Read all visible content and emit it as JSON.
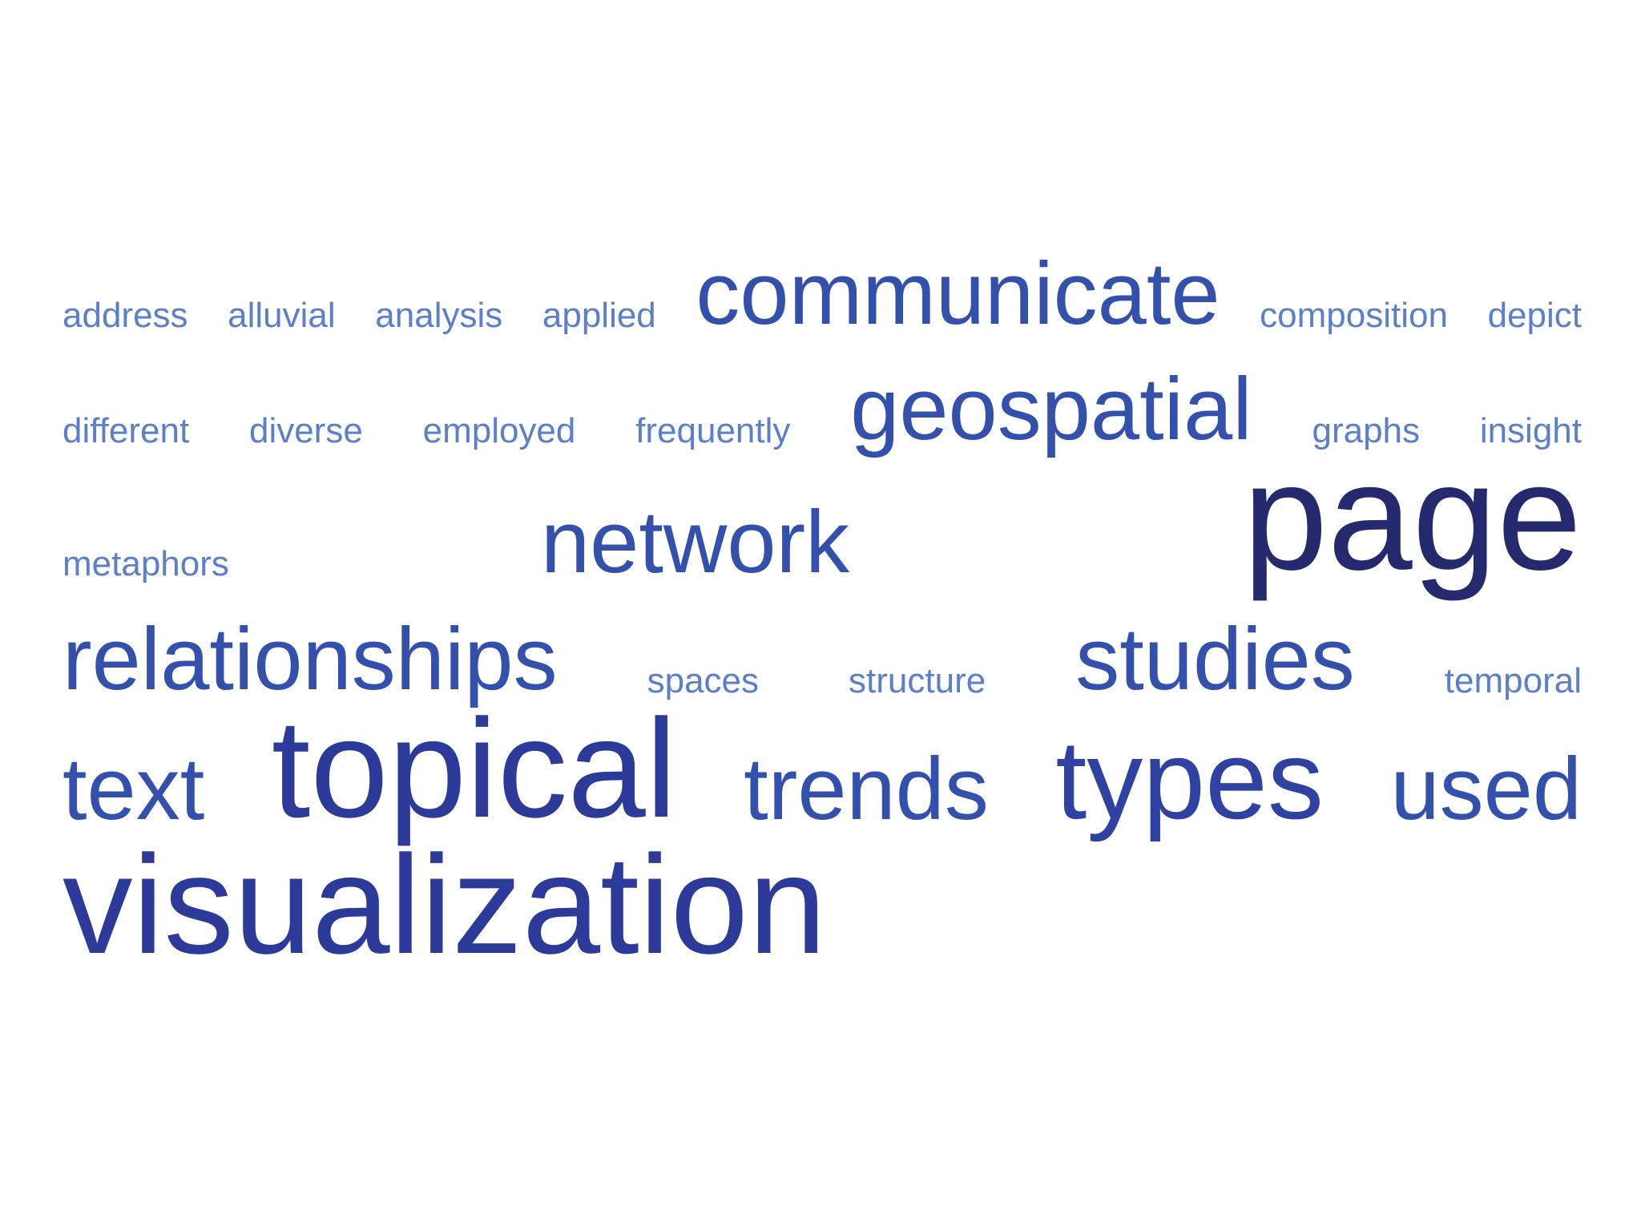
{
  "chart_data": {
    "type": "wordcloud",
    "rows": [
      {
        "words": [
          {
            "text": "address",
            "weight": 1,
            "color": "#5b7fcb"
          },
          {
            "text": "alluvial",
            "weight": 1,
            "color": "#5b7fcb"
          },
          {
            "text": "analysis",
            "weight": 1,
            "color": "#5b7fcb"
          },
          {
            "text": "applied",
            "weight": 1,
            "color": "#5b7fcb"
          },
          {
            "text": "communicate",
            "weight": 3,
            "color": "#3350ad"
          },
          {
            "text": "composition",
            "weight": 1,
            "color": "#5b7fcb"
          },
          {
            "text": "depict",
            "weight": 1,
            "color": "#5b7fcb"
          }
        ]
      },
      {
        "words": [
          {
            "text": "different",
            "weight": 1,
            "color": "#5b7fcb"
          },
          {
            "text": "diverse",
            "weight": 1,
            "color": "#5b7fcb"
          },
          {
            "text": "employed",
            "weight": 1,
            "color": "#5b7fcb"
          },
          {
            "text": "frequently",
            "weight": 1,
            "color": "#5b7fcb"
          },
          {
            "text": "geospatial",
            "weight": 3,
            "color": "#3350ad"
          },
          {
            "text": "graphs",
            "weight": 1,
            "color": "#5b7fcb"
          },
          {
            "text": "insight",
            "weight": 1,
            "color": "#5b7fcb"
          }
        ]
      },
      {
        "words": [
          {
            "text": "metaphors",
            "weight": 1,
            "color": "#5b7fcb"
          },
          {
            "text": "network",
            "weight": 3,
            "color": "#3350ad"
          },
          {
            "text": "page",
            "weight": 6,
            "color": "#252a6e"
          }
        ]
      },
      {
        "words": [
          {
            "text": "relationships",
            "weight": 3,
            "color": "#3350ad"
          },
          {
            "text": "spaces",
            "weight": 1,
            "color": "#5b7fcb"
          },
          {
            "text": "structure",
            "weight": 1,
            "color": "#5b7fcb"
          },
          {
            "text": "studies",
            "weight": 3,
            "color": "#3350ad"
          },
          {
            "text": "temporal",
            "weight": 1,
            "color": "#5b7fcb"
          }
        ]
      },
      {
        "words": [
          {
            "text": "text",
            "weight": 3,
            "color": "#3350ad"
          },
          {
            "text": "topical",
            "weight": 5,
            "color": "#2c3a9a"
          },
          {
            "text": "trends",
            "weight": 3,
            "color": "#3350ad"
          },
          {
            "text": "types",
            "weight": 4,
            "color": "#2f42a2"
          },
          {
            "text": "used",
            "weight": 3,
            "color": "#3350ad"
          }
        ]
      },
      {
        "words": [
          {
            "text": "visualization",
            "weight": 5,
            "color": "#2c3a9a"
          }
        ]
      }
    ]
  }
}
